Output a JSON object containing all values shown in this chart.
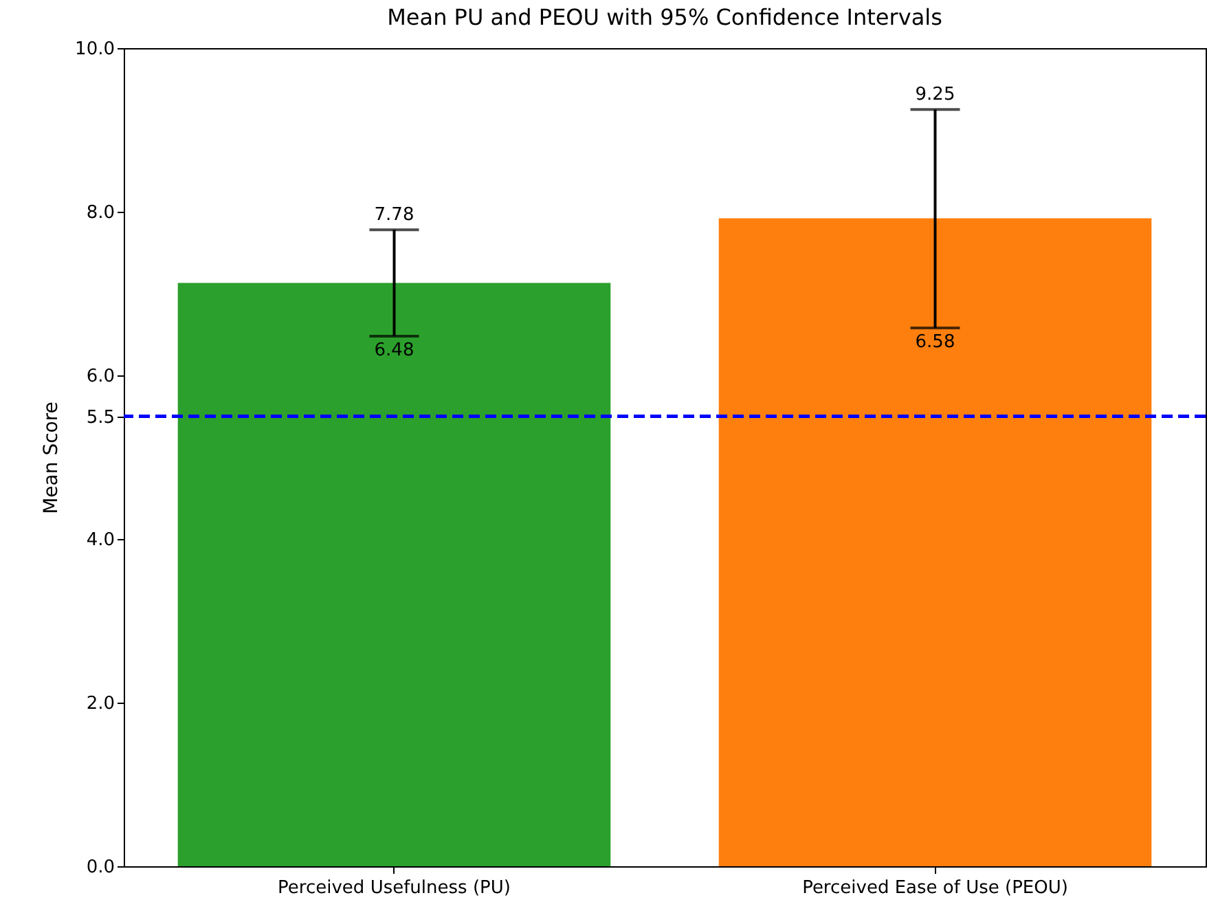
{
  "chart_data": {
    "type": "bar",
    "title": "Mean PU and PEOU with 95% Confidence Intervals",
    "ylabel": "Mean Score",
    "categories": [
      "Perceived Usefulness (PU)",
      "Perceived Ease of Use (PEOU)"
    ],
    "values": [
      7.13,
      7.92
    ],
    "colors": [
      "#2ca02c",
      "#ff7f0e"
    ],
    "errors": [
      [
        6.48,
        7.78
      ],
      [
        6.58,
        9.25
      ]
    ],
    "ylim": [
      0,
      10
    ],
    "yticks": [
      {
        "value": 0,
        "label": "0.0"
      },
      {
        "value": 2,
        "label": "2.0"
      },
      {
        "value": 4,
        "label": "4.0"
      },
      {
        "value": 5.5,
        "label": "5.5"
      },
      {
        "value": 6,
        "label": "6.0"
      },
      {
        "value": 8,
        "label": "8.0"
      },
      {
        "value": 10,
        "label": "10.0"
      }
    ],
    "ref_lines": [
      {
        "axis": "y",
        "value": 5.5,
        "color": "#0000ff",
        "line_style": "dashed"
      }
    ],
    "annotations": [
      {
        "text": "7.78",
        "x": "Perceived Usefulness (PU)",
        "y": 7.78
      },
      {
        "text": "6.48",
        "x": "Perceived Usefulness (PU)",
        "y": 6.48
      },
      {
        "text": "9.25",
        "x": "Perceived Ease of Use (PEOU)",
        "y": 9.25
      },
      {
        "text": "6.58",
        "x": "Perceived Ease of Use (PEOU)",
        "y": 6.58
      }
    ],
    "grid": false,
    "legend": false
  }
}
